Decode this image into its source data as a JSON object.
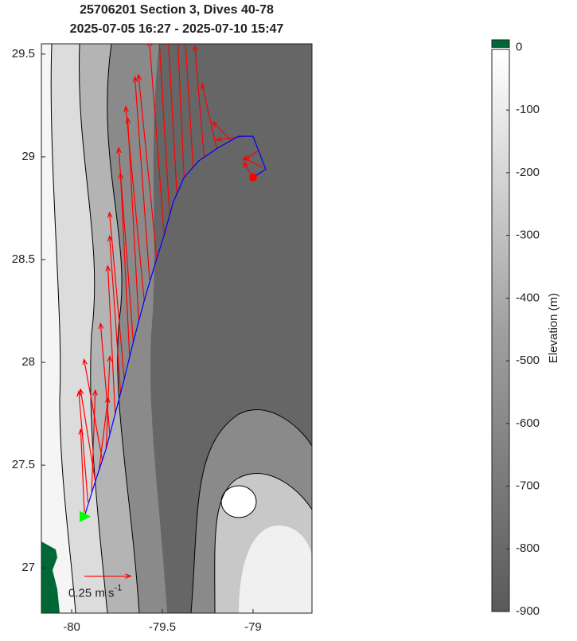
{
  "chart_data": {
    "type": "map",
    "title": "25706201 Section 3, Dives 40-78",
    "subtitle": "2025-07-05 16:27 - 2025-07-10 15:47",
    "xlim": [
      -80.167,
      -78.675
    ],
    "ylim": [
      26.78,
      29.55
    ],
    "xticks": [
      -80,
      -79.5,
      -79
    ],
    "yticks": [
      27,
      27.5,
      28,
      28.5,
      29,
      29.5
    ],
    "track": {
      "color": "#0000ff",
      "lon": [
        -79.93,
        -79.87,
        -79.81,
        -79.76,
        -79.71,
        -79.66,
        -79.6,
        -79.55,
        -79.49,
        -79.44,
        -79.38,
        -79.3,
        -79.2,
        -79.08,
        -79.0,
        -78.93,
        -79.0
      ],
      "lat": [
        27.25,
        27.42,
        27.58,
        27.75,
        27.92,
        28.1,
        28.3,
        28.45,
        28.62,
        28.78,
        28.9,
        28.98,
        29.04,
        29.1,
        29.1,
        28.94,
        28.9
      ]
    },
    "vectors": {
      "color": "#ff0000",
      "lon": [
        -79.93,
        -79.91,
        -79.89,
        -79.87,
        -79.85,
        -79.83,
        -79.81,
        -79.79,
        -79.76,
        -79.73,
        -79.71,
        -79.68,
        -79.66,
        -79.63,
        -79.6,
        -79.57,
        -79.53,
        -79.49,
        -79.46,
        -79.42,
        -79.38,
        -79.33,
        -79.27,
        -79.2,
        -79.12,
        -79.05,
        -78.97,
        -78.95,
        -79.0
      ],
      "lat": [
        27.27,
        27.32,
        27.37,
        27.42,
        27.47,
        27.52,
        27.58,
        27.65,
        27.75,
        27.85,
        27.92,
        28.02,
        28.1,
        28.2,
        28.3,
        28.4,
        28.5,
        28.62,
        28.72,
        28.82,
        28.9,
        28.95,
        29.0,
        29.04,
        29.08,
        29.1,
        29.03,
        28.95,
        28.9
      ],
      "u": [
        -0.02,
        -0.05,
        0.02,
        -0.08,
        0.05,
        -0.1,
        0.02,
        -0.05,
        -0.04,
        -0.06,
        -0.08,
        -0.05,
        -0.08,
        -0.06,
        -0.1,
        -0.08,
        -0.1,
        -0.08,
        -0.06,
        -0.05,
        -0.04,
        -0.05,
        -0.05,
        -0.08,
        -0.1,
        -0.15,
        -0.08,
        -0.1,
        -0.05
      ],
      "v": [
        0.45,
        0.6,
        0.55,
        0.5,
        0.4,
        0.55,
        0.5,
        0.6,
        0.8,
        0.85,
        0.9,
        1.0,
        1.05,
        1.1,
        1.05,
        1.1,
        1.0,
        1.05,
        1.0,
        0.9,
        0.85,
        0.8,
        0.6,
        0.35,
        0.1,
        -0.02,
        -0.05,
        0.05,
        0.08
      ]
    },
    "start": {
      "lon": -79.93,
      "lat": 27.25,
      "color": "#00ff00"
    },
    "end": {
      "lon": -79.0,
      "lat": 28.9,
      "color": "#ff0000"
    },
    "scale_arrow": {
      "lon": -79.93,
      "lat": 26.96,
      "value": 0.25,
      "label": "0.25 m s",
      "label_sup": "-1"
    },
    "colorbar": {
      "label": "Elevation (m)",
      "clim": [
        -900,
        12
      ],
      "ticks": [
        0,
        -100,
        -200,
        -300,
        -400,
        -500,
        -600,
        -700,
        -800,
        -900
      ],
      "land_color": "#006837"
    }
  }
}
